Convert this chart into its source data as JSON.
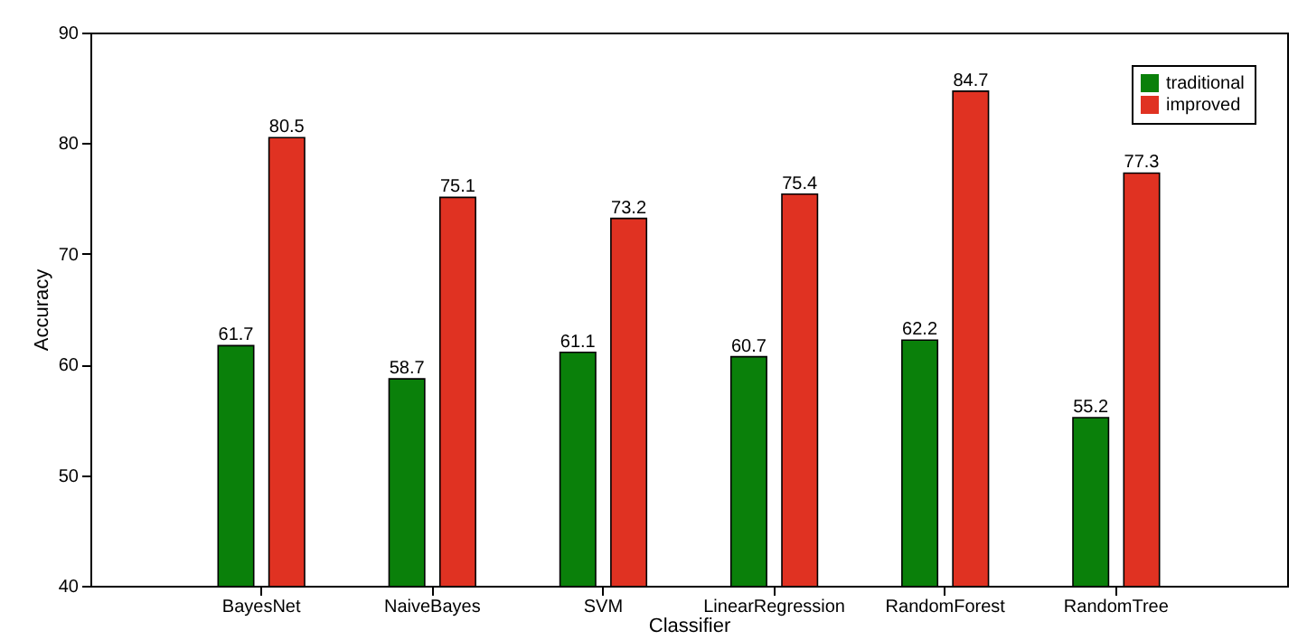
{
  "chart_data": {
    "type": "bar",
    "xlabel": "Classifier",
    "ylabel": "Accuracy",
    "categories": [
      "BayesNet",
      "NaiveBayes",
      "SVM",
      "LinearRegression",
      "RandomForest",
      "RandomTree"
    ],
    "series": [
      {
        "name": "traditional",
        "color": "#0a800a",
        "values": [
          61.7,
          58.7,
          61.1,
          60.7,
          62.2,
          55.2
        ]
      },
      {
        "name": "improved",
        "color": "#e03222",
        "values": [
          80.5,
          75.1,
          73.2,
          75.4,
          84.7,
          77.3
        ]
      }
    ],
    "ylim": [
      40,
      90
    ],
    "yticks": [
      40,
      50,
      60,
      70,
      80,
      90
    ],
    "data_labels": true,
    "legend": "top right",
    "grid": false
  }
}
